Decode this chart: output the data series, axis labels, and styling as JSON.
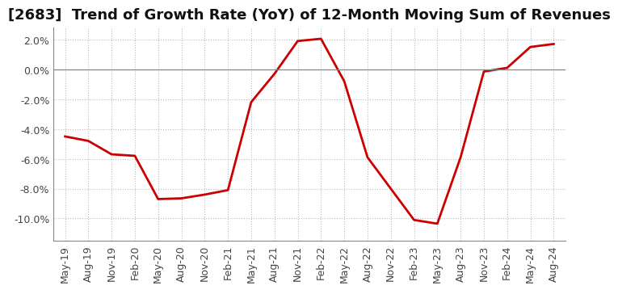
{
  "title": "[2683]  Trend of Growth Rate (YoY) of 12-Month Moving Sum of Revenues",
  "x_labels": [
    "May-19",
    "Aug-19",
    "Nov-19",
    "Feb-20",
    "May-20",
    "Aug-20",
    "Nov-20",
    "Feb-21",
    "May-21",
    "Aug-21",
    "Nov-21",
    "Feb-22",
    "May-22",
    "Aug-22",
    "Nov-22",
    "Feb-23",
    "May-23",
    "Aug-23",
    "Nov-23",
    "Feb-24",
    "May-24",
    "Aug-24"
  ],
  "y_values": [
    -4.5,
    -4.8,
    -5.7,
    -5.8,
    -8.7,
    -8.65,
    -8.4,
    -8.1,
    -2.2,
    -0.3,
    1.9,
    2.05,
    -0.8,
    -5.9,
    -8.0,
    -10.1,
    -10.35,
    -5.9,
    -0.15,
    0.1,
    1.5,
    1.7
  ],
  "line_color": "#cc0000",
  "line_width": 2.0,
  "background_color": "#ffffff",
  "plot_bg_color": "#ffffff",
  "grid_color": "#bbbbbb",
  "ylim": [
    -11.5,
    2.8
  ],
  "yticks": [
    -10.0,
    -8.0,
    -6.0,
    -4.0,
    -2.0,
    0.0,
    2.0
  ],
  "title_fontsize": 13,
  "tick_fontsize": 9
}
